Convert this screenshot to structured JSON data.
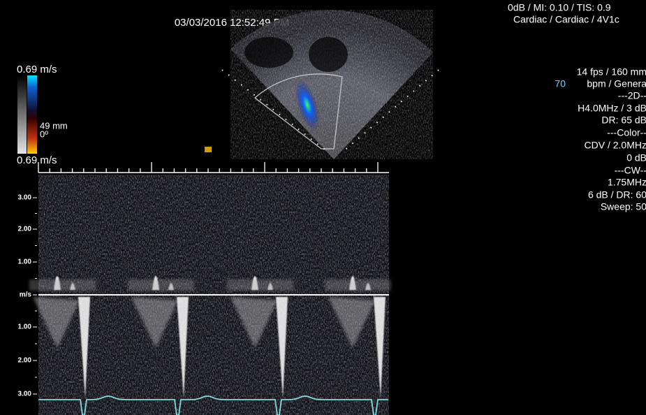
{
  "timestamp": "03/03/2016 12:52:49 PM",
  "header_right": [
    "0dB / MI: 0.10 / TIS: 0.9",
    "Cardiac / Cardiac / 4V1c"
  ],
  "color_scale": {
    "top": "0.69 m/s",
    "depth": "49 mm",
    "angle": "0º",
    "bottom": "0.69 m/s"
  },
  "params": {
    "frame": "14 fps / 160 mm",
    "heart_rate": "70",
    "preset": "bpm / Genera",
    "section_2d": "---2D--",
    "freq_2d": "H4.0MHz / 3 dB",
    "dr_2d": "DR: 65 dB",
    "section_color": "---Color--",
    "color_freq": "CDV / 2.0MHz",
    "color_gain": "0 dB",
    "section_cw": "---CW--",
    "cw_freq": "1.75MHz",
    "cw_gain": "6 dB / DR: 60",
    "sweep": "Sweep: 50"
  },
  "spectral_axis": [
    "3.00",
    "2.00",
    "1.00",
    "m/s",
    "1.00",
    "2.00",
    "3.00"
  ]
}
